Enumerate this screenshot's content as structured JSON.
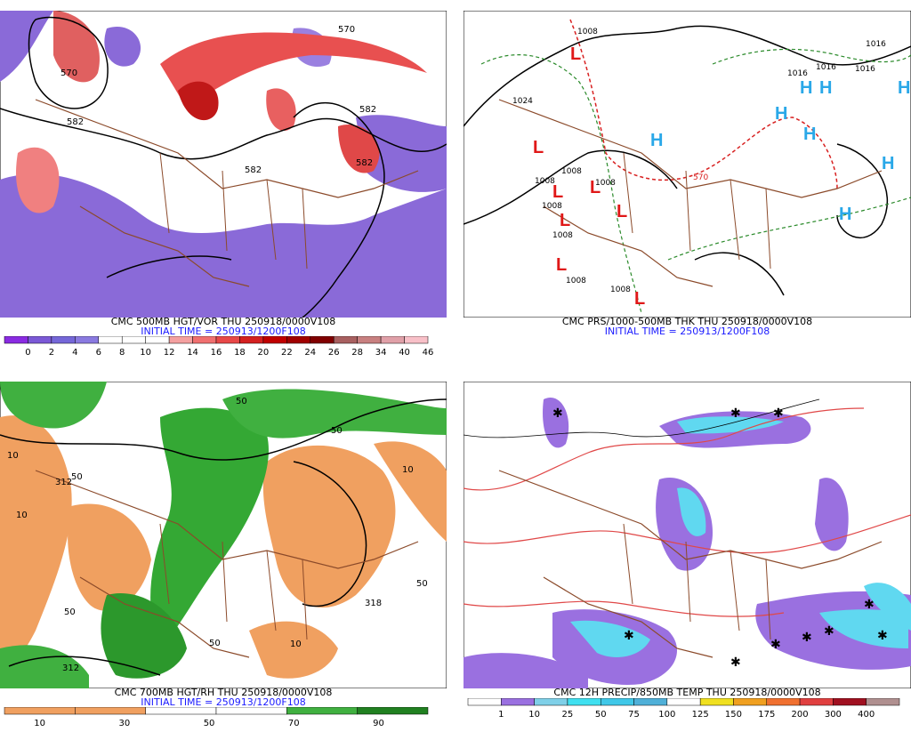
{
  "panels": [
    {
      "id": "p1",
      "title": "CMC 500MB HGT/VOR THU 250918/0000V108",
      "init": "INITIAL TIME = 250913/1200F108",
      "contour_labels": [
        "570",
        "582",
        "582",
        "582",
        "570",
        "582"
      ],
      "legend_colors": [
        "#8a2be2",
        "#7b59d6",
        "#7567d8",
        "#8a7ae0",
        "#ffffff",
        "#ffffff",
        "#ffffff",
        "#f4a0a0",
        "#f07070",
        "#e84848",
        "#d42020",
        "#c00000",
        "#a00000",
        "#800000",
        "#a86060",
        "#c88080",
        "#e0a0a8",
        "#f8c0c8"
      ],
      "legend_labels": [
        "0",
        "2",
        "4",
        "6",
        "8",
        "10",
        "12",
        "14",
        "16",
        "18",
        "20",
        "22",
        "24",
        "26",
        "28",
        "34",
        "40",
        "46"
      ]
    },
    {
      "id": "p2",
      "title": "CMC PRS/1000-500MB THK THU 250918/0000V108",
      "init": "INITIAL TIME = 250913/1200F108",
      "contour_labels": [
        "1008",
        "1024",
        "1016",
        "1016",
        "1016",
        "1016",
        "1008",
        "1008",
        "1008",
        "1008",
        "1008",
        "1008",
        "1008",
        "570"
      ]
    },
    {
      "id": "p3",
      "title": "CMC 700MB HGT/RH THU 250918/0000V108",
      "init": "INITIAL TIME = 250913/1200F108",
      "contour_labels": [
        "10",
        "50",
        "10",
        "50",
        "312",
        "50",
        "50",
        "318",
        "312",
        "50",
        "10",
        "10",
        "50"
      ],
      "legend_labels": [
        "10",
        "30",
        "50",
        "70",
        "90"
      ]
    },
    {
      "id": "p4",
      "title": "CMC 12H PRECIP/850MB TEMP THU 250918/0000V108",
      "legend_colors": [
        "#ffffff",
        "#9a70e0",
        "#7fd0e8",
        "#40e0f0",
        "#40c8e8",
        "#50b0d8",
        "#ffffff",
        "#f0e020",
        "#f0a020",
        "#f07030",
        "#e04040",
        "#a01020",
        "#b09090"
      ],
      "legend_labels": [
        "1",
        "10",
        "25",
        "50",
        "75",
        "100",
        "125",
        "150",
        "175",
        "200",
        "300",
        "400"
      ]
    }
  ]
}
